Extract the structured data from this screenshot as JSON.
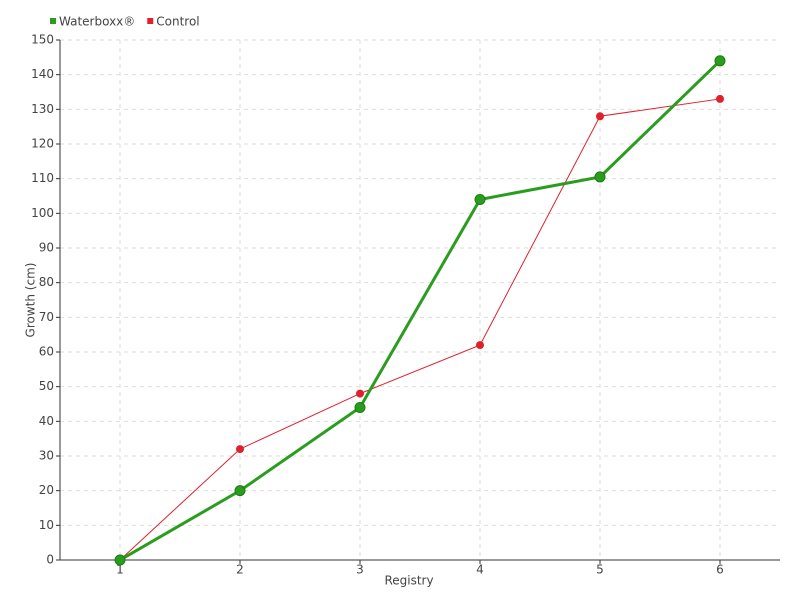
{
  "chart_data": {
    "type": "line",
    "xlabel": "Registry",
    "ylabel": "Growth (cm)",
    "x": [
      1,
      2,
      3,
      4,
      5,
      6
    ],
    "series": [
      {
        "name": "Waterboxx®",
        "color": "#2a9d1e",
        "values": [
          0,
          20,
          44,
          104,
          110.5,
          144
        ]
      },
      {
        "name": "Control",
        "color": "#e0202a",
        "values": [
          0,
          32,
          48,
          62,
          128,
          133
        ]
      }
    ],
    "xlim": [
      0.5,
      6.5
    ],
    "xticks": [
      1,
      2,
      3,
      4,
      5,
      6
    ],
    "ylim": [
      0,
      150
    ],
    "yticks": [
      0,
      10,
      20,
      30,
      40,
      50,
      60,
      70,
      80,
      90,
      100,
      110,
      120,
      130,
      140,
      150
    ],
    "grid": true,
    "legend": "top-left"
  }
}
